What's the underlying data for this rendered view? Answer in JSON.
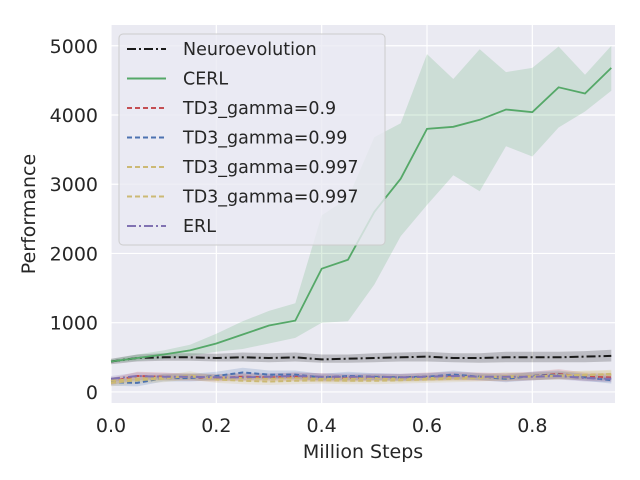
{
  "chart_data": {
    "type": "line",
    "title": "",
    "xlabel": "Million Steps",
    "ylabel": "Performance",
    "xlim": [
      0,
      0.957
    ],
    "ylim": [
      -160,
      5300
    ],
    "grid": true,
    "legend_position": "top-left",
    "x_ticks": [
      "0.0",
      "0.2",
      "0.4",
      "0.6",
      "0.8"
    ],
    "x_tick_values": [
      0,
      0.2,
      0.4,
      0.6,
      0.8
    ],
    "y_ticks": [
      "0",
      "1000",
      "2000",
      "3000",
      "4000",
      "5000"
    ],
    "y_tick_values": [
      0,
      1000,
      2000,
      3000,
      4000,
      5000
    ],
    "x": [
      0,
      0.05,
      0.1,
      0.15,
      0.2,
      0.25,
      0.3,
      0.35,
      0.4,
      0.45,
      0.5,
      0.55,
      0.6,
      0.65,
      0.7,
      0.75,
      0.8,
      0.85,
      0.9,
      0.95
    ],
    "series": [
      {
        "name": "Neuroevolution",
        "color": "#1a1a1a",
        "style": "dashdot",
        "values": [
          440,
          490,
          500,
          500,
          490,
          500,
          490,
          500,
          470,
          480,
          490,
          500,
          510,
          490,
          490,
          500,
          500,
          500,
          510,
          520
        ],
        "band_low": [
          400,
          440,
          450,
          450,
          440,
          440,
          430,
          440,
          420,
          420,
          430,
          440,
          440,
          430,
          420,
          430,
          430,
          430,
          430,
          440
        ],
        "band_high": [
          480,
          540,
          560,
          560,
          550,
          570,
          560,
          570,
          540,
          540,
          560,
          570,
          580,
          560,
          560,
          580,
          580,
          580,
          590,
          610
        ]
      },
      {
        "name": "CERL",
        "color": "#55a868",
        "style": "solid",
        "values": [
          440,
          490,
          540,
          600,
          700,
          830,
          960,
          1030,
          1780,
          1910,
          2600,
          3080,
          3800,
          3830,
          3930,
          4080,
          4040,
          4400,
          4310,
          4680
        ],
        "band_low": [
          420,
          450,
          480,
          520,
          580,
          620,
          700,
          780,
          1000,
          1020,
          1550,
          2250,
          2700,
          3130,
          2900,
          3550,
          3400,
          3820,
          4050,
          4350
        ],
        "band_high": [
          470,
          540,
          600,
          680,
          840,
          1020,
          1170,
          1280,
          2550,
          2800,
          3680,
          3880,
          4880,
          4520,
          4950,
          4620,
          4680,
          4990,
          4580,
          5000
        ]
      },
      {
        "name": "TD3_gamma=0.9",
        "color": "#c44e52",
        "style": "dashed",
        "values": [
          150,
          230,
          220,
          210,
          200,
          220,
          210,
          220,
          210,
          200,
          210,
          210,
          220,
          230,
          220,
          210,
          230,
          260,
          220,
          210
        ],
        "band_low": [
          100,
          170,
          170,
          160,
          150,
          160,
          160,
          160,
          150,
          150,
          160,
          160,
          160,
          170,
          160,
          150,
          170,
          190,
          160,
          150
        ],
        "band_high": [
          200,
          290,
          280,
          260,
          250,
          280,
          260,
          280,
          270,
          250,
          260,
          260,
          280,
          290,
          280,
          270,
          290,
          330,
          280,
          270
        ]
      },
      {
        "name": "TD3_gamma=0.99",
        "color": "#4c72b0",
        "style": "dashed",
        "values": [
          140,
          130,
          200,
          200,
          230,
          280,
          250,
          250,
          210,
          230,
          220,
          210,
          220,
          250,
          220,
          190,
          230,
          250,
          210,
          170
        ],
        "band_low": [
          90,
          80,
          150,
          150,
          170,
          210,
          190,
          190,
          160,
          170,
          170,
          160,
          170,
          190,
          170,
          140,
          170,
          190,
          160,
          120
        ],
        "band_high": [
          190,
          180,
          260,
          260,
          290,
          350,
          310,
          310,
          260,
          290,
          270,
          260,
          270,
          310,
          270,
          240,
          290,
          310,
          260,
          220
        ]
      },
      {
        "name": "TD3_gamma=0.997",
        "color": "#ccb974",
        "style": "dashed",
        "values": [
          130,
          170,
          190,
          240,
          180,
          160,
          150,
          160,
          170,
          160,
          160,
          170,
          180,
          190,
          200,
          230,
          220,
          240,
          240,
          260
        ],
        "band_low": [
          80,
          120,
          140,
          180,
          130,
          110,
          100,
          110,
          120,
          110,
          110,
          120,
          130,
          140,
          150,
          170,
          170,
          180,
          180,
          200
        ],
        "band_high": [
          180,
          220,
          240,
          300,
          230,
          210,
          200,
          210,
          220,
          210,
          210,
          220,
          230,
          240,
          250,
          290,
          270,
          300,
          300,
          320
        ]
      },
      {
        "name": "TD3_gamma=0.997",
        "color": "#ccb974",
        "style": "dashed",
        "values": [
          160,
          190,
          210,
          220,
          210,
          200,
          190,
          200,
          190,
          190,
          200,
          190,
          200,
          210,
          220,
          210,
          230,
          230,
          250,
          250
        ],
        "band_low": [
          110,
          140,
          160,
          170,
          160,
          150,
          140,
          150,
          140,
          140,
          150,
          140,
          150,
          160,
          170,
          160,
          180,
          180,
          190,
          190
        ],
        "band_high": [
          210,
          240,
          260,
          270,
          260,
          250,
          240,
          250,
          240,
          240,
          250,
          240,
          250,
          260,
          270,
          260,
          280,
          280,
          310,
          310
        ]
      },
      {
        "name": "ERL",
        "color": "#8172b2",
        "style": "dashdot",
        "values": [
          190,
          230,
          220,
          220,
          210,
          210,
          220,
          230,
          220,
          220,
          220,
          210,
          220,
          230,
          220,
          220,
          220,
          230,
          200,
          190
        ],
        "band_low": [
          150,
          180,
          180,
          180,
          170,
          170,
          180,
          180,
          170,
          170,
          170,
          160,
          170,
          180,
          170,
          170,
          170,
          180,
          150,
          140
        ],
        "band_high": [
          230,
          280,
          270,
          270,
          260,
          260,
          270,
          280,
          270,
          270,
          270,
          260,
          270,
          280,
          270,
          270,
          280,
          290,
          260,
          250
        ]
      }
    ]
  }
}
